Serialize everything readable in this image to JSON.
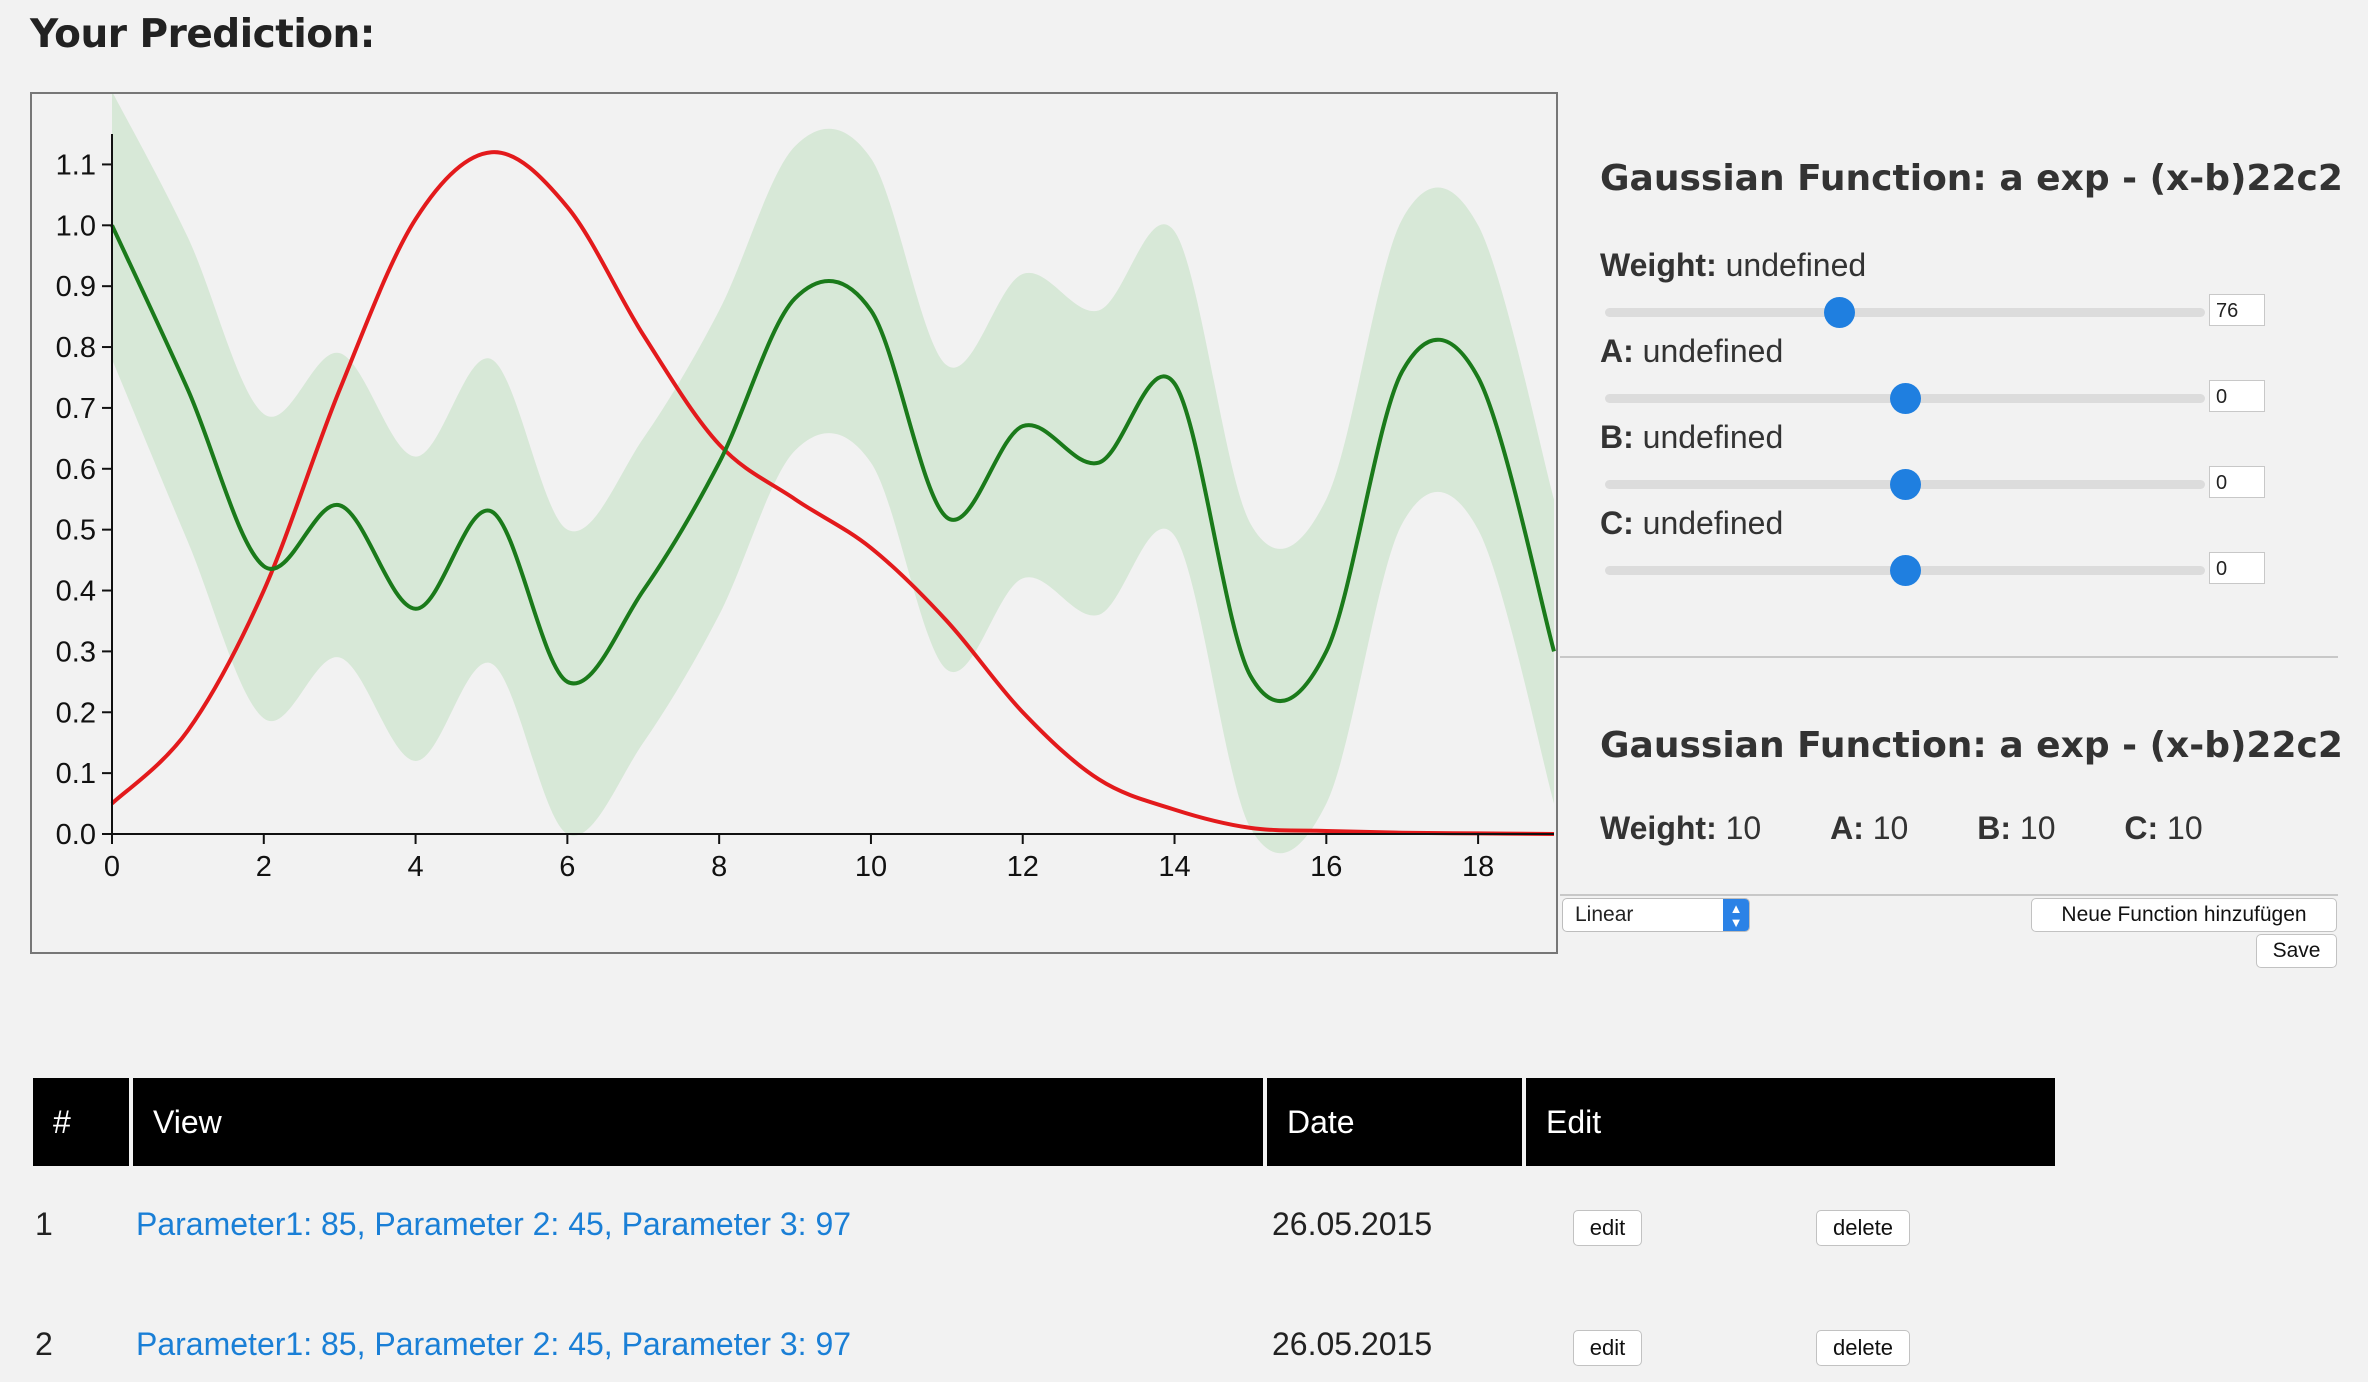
{
  "page": {
    "title": "Your Prediction:"
  },
  "chart_data": {
    "type": "line",
    "x_ticks": [
      "0",
      "2",
      "4",
      "6",
      "8",
      "10",
      "12",
      "14",
      "16",
      "18"
    ],
    "y_ticks": [
      "0.0",
      "0.1",
      "0.2",
      "0.3",
      "0.4",
      "0.5",
      "0.6",
      "0.7",
      "0.8",
      "0.9",
      "1.0",
      "1.1"
    ],
    "xlim": [
      0,
      19
    ],
    "ylim": [
      0,
      1.15
    ],
    "grid": false,
    "series": [
      {
        "kind": "line",
        "color": "#e31a1c",
        "x": [
          0,
          1,
          2,
          3,
          4,
          5,
          6,
          7,
          8,
          9,
          10,
          11,
          12,
          13,
          14,
          15,
          16,
          17,
          18,
          19
        ],
        "y": [
          0.05,
          0.17,
          0.4,
          0.73,
          1.01,
          1.12,
          1.03,
          0.82,
          0.64,
          0.55,
          0.47,
          0.35,
          0.2,
          0.09,
          0.04,
          0.01,
          0.005,
          0.002,
          0.001,
          0
        ]
      },
      {
        "kind": "line",
        "color": "#1a7a1a",
        "x": [
          0,
          1,
          2,
          3,
          4,
          5,
          6,
          7,
          8,
          9,
          10,
          11,
          12,
          13,
          14,
          15,
          16,
          17,
          18,
          19
        ],
        "y": [
          1.0,
          0.73,
          0.44,
          0.54,
          0.37,
          0.53,
          0.25,
          0.4,
          0.61,
          0.88,
          0.86,
          0.52,
          0.67,
          0.61,
          0.74,
          0.26,
          0.3,
          0.76,
          0.75,
          0.3
        ]
      },
      {
        "kind": "band",
        "color": "#d7e8d7",
        "x": [
          0,
          1,
          2,
          3,
          4,
          5,
          6,
          7,
          8,
          9,
          10,
          11,
          12,
          13,
          14,
          15,
          16,
          17,
          18,
          19
        ],
        "upper": [
          1.22,
          0.98,
          0.69,
          0.79,
          0.62,
          0.78,
          0.5,
          0.65,
          0.86,
          1.13,
          1.11,
          0.77,
          0.92,
          0.86,
          0.99,
          0.51,
          0.55,
          1.01,
          1.0,
          0.55
        ],
        "lower": [
          0.78,
          0.48,
          0.19,
          0.29,
          0.12,
          0.28,
          0.0,
          0.15,
          0.36,
          0.63,
          0.61,
          0.27,
          0.42,
          0.36,
          0.49,
          0.01,
          0.05,
          0.51,
          0.5,
          0.05
        ]
      }
    ]
  },
  "panel": {
    "title": "Gaussian Function: a exp - (x-b)22c2",
    "params": [
      {
        "label": "Weight:",
        "value": "undefined",
        "slider_fraction": 0.39,
        "input": "76"
      },
      {
        "label": "A:",
        "value": "undefined",
        "slider_fraction": 0.5,
        "input": "0"
      },
      {
        "label": "B:",
        "value": "undefined",
        "slider_fraction": 0.5,
        "input": "0"
      },
      {
        "label": "C:",
        "value": "undefined",
        "slider_fraction": 0.5,
        "input": "0"
      }
    ],
    "title2": "Gaussian Function: a exp - (x-b)22c2",
    "summary": [
      {
        "label": "Weight:",
        "value": "10"
      },
      {
        "label": "A:",
        "value": "10"
      },
      {
        "label": "B:",
        "value": "10"
      },
      {
        "label": "C:",
        "value": "10"
      }
    ]
  },
  "controls": {
    "select_value": "Linear",
    "add_button": "Neue Function hinzufügen",
    "save_button": "Save"
  },
  "table": {
    "headers": [
      "#",
      "View",
      "Date",
      "Edit"
    ],
    "rows": [
      {
        "num": "1",
        "view": "Parameter1: 85, Parameter 2: 45, Parameter 3: 97",
        "date": "26.05.2015",
        "edit": "edit",
        "delete": "delete"
      },
      {
        "num": "2",
        "view": "Parameter1: 85, Parameter 2: 45, Parameter 3: 97",
        "date": "26.05.2015",
        "edit": "edit",
        "delete": "delete"
      }
    ]
  }
}
